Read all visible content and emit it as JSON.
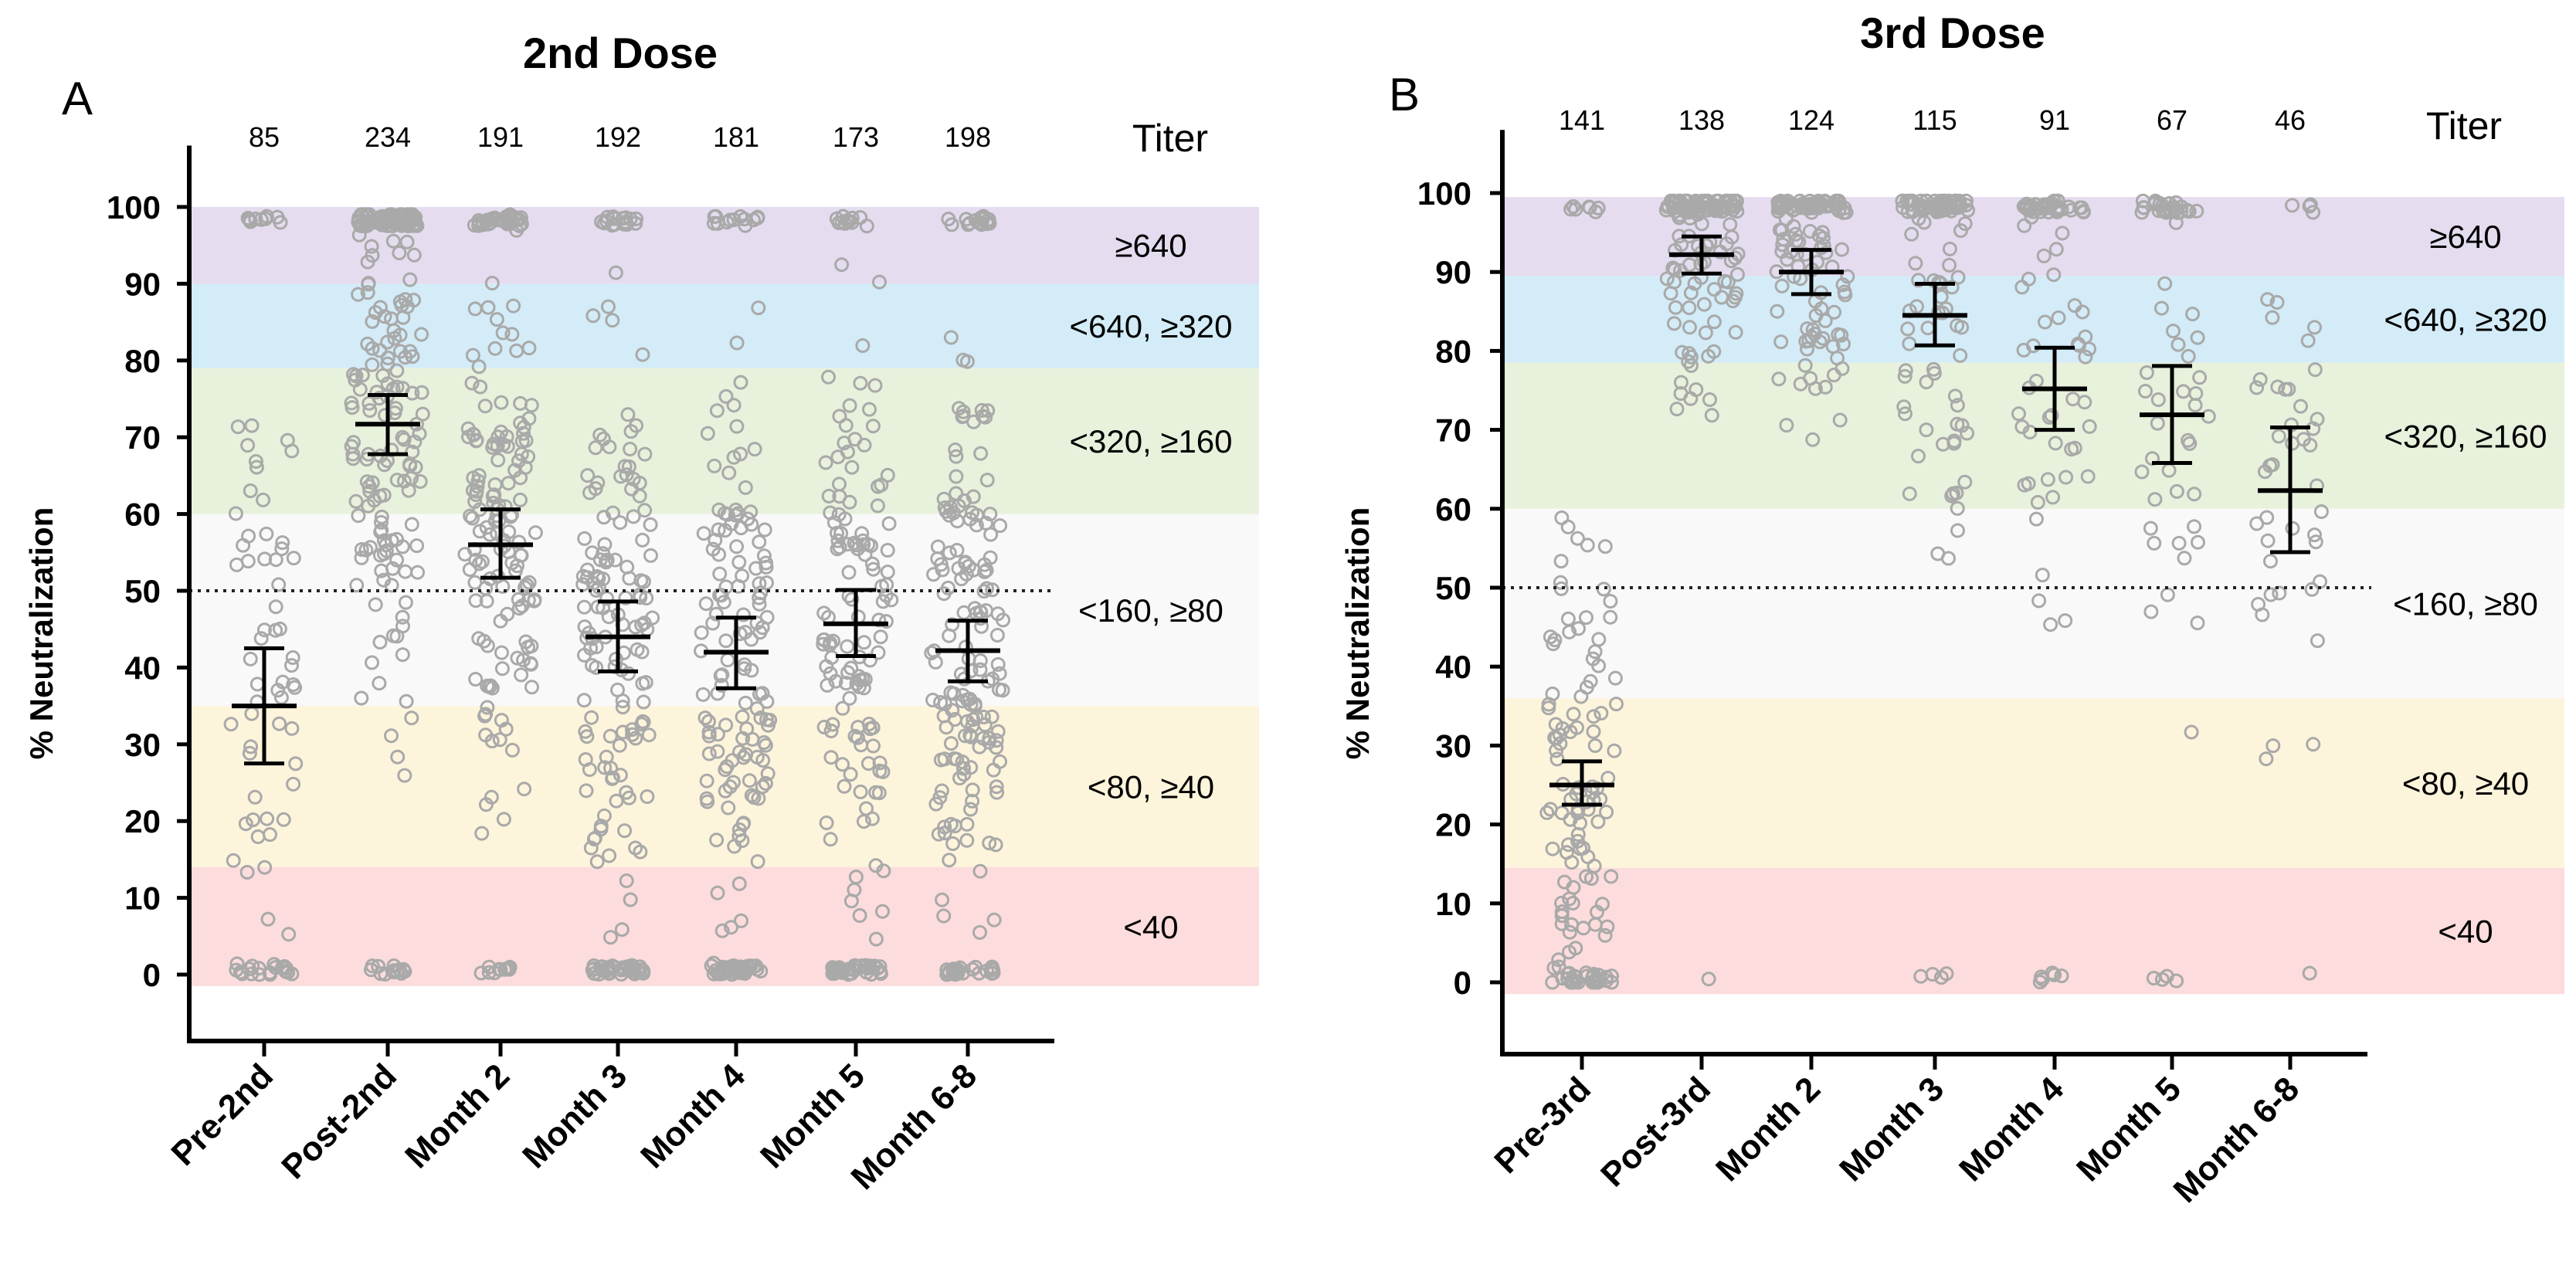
{
  "chart_data": [
    {
      "type": "scatter",
      "panel_label": "A",
      "title": "2nd Dose",
      "ylabel": "% Neutralization",
      "ylim": [
        -8,
        108
      ],
      "yticks": [
        0,
        10,
        20,
        30,
        40,
        50,
        60,
        70,
        80,
        90,
        100
      ],
      "reference_line": 50,
      "titer_header": "Titer",
      "titer_bands": [
        {
          "label": "≥640",
          "from": 90,
          "to": 100,
          "color": "#e5dcef"
        },
        {
          "label": "<640, ≥320",
          "from": 79,
          "to": 90,
          "color": "#d3ecf7"
        },
        {
          "label": "<320, ≥160",
          "from": 60,
          "to": 79,
          "color": "#e7f1dc"
        },
        {
          "label": "<160, ≥80",
          "from": 35,
          "to": 60,
          "color": "#f9f9f9"
        },
        {
          "label": "<80, ≥40",
          "from": 14,
          "to": 35,
          "color": "#fdf4dc"
        },
        {
          "label": "<40",
          "from": -1.5,
          "to": 14,
          "color": "#fcdcdc"
        }
      ],
      "categories": [
        "Pre-2nd",
        "Post-2nd",
        "Month 2",
        "Month 3",
        "Month 4",
        "Month 5",
        "Month 6-8"
      ],
      "n": [
        "85",
        "234",
        "191",
        "192",
        "181",
        "173",
        "198"
      ],
      "mean": [
        35,
        71.7,
        56,
        44,
        42,
        45.7,
        42.2
      ],
      "ci_low": [
        27.5,
        67.8,
        51.7,
        39.5,
        37.3,
        41.5,
        38.2
      ],
      "ci_high": [
        42.5,
        75.5,
        60.6,
        48.6,
        46.5,
        50.1,
        46.1
      ]
    },
    {
      "type": "scatter",
      "panel_label": "B",
      "title": "3rd Dose",
      "ylabel": "% Neutralization",
      "ylim": [
        -8,
        108
      ],
      "yticks": [
        0,
        10,
        20,
        30,
        40,
        50,
        60,
        70,
        80,
        90,
        100
      ],
      "reference_line": 50,
      "titer_header": "Titer",
      "titer_bands": [
        {
          "label": "≥640",
          "from": 89.5,
          "to": 99.5,
          "color": "#e5dcef"
        },
        {
          "label": "<640, ≥320",
          "from": 78.5,
          "to": 89.5,
          "color": "#d3ecf7"
        },
        {
          "label": "<320, ≥160",
          "from": 60,
          "to": 78.5,
          "color": "#e7f1dc"
        },
        {
          "label": "<160, ≥80",
          "from": 36,
          "to": 60,
          "color": "#f9f9f9"
        },
        {
          "label": "<80, ≥40",
          "from": 14.5,
          "to": 36,
          "color": "#fdf4dc"
        },
        {
          "label": "<40",
          "from": -1.5,
          "to": 14.5,
          "color": "#fcdcdc"
        }
      ],
      "categories": [
        "Pre-3rd",
        "Post-3rd",
        "Month 2",
        "Month 3",
        "Month 4",
        "Month 5",
        "Month 6-8"
      ],
      "n": [
        "141",
        "138",
        "124",
        "115",
        "91",
        "67",
        "46"
      ],
      "mean": [
        25,
        92.2,
        90,
        84.5,
        75.2,
        71.9,
        62.3
      ],
      "ci_low": [
        22.5,
        89.8,
        87.2,
        80.7,
        70,
        65.8,
        54.5
      ],
      "ci_high": [
        28,
        94.5,
        92.8,
        88.5,
        80.4,
        78.1,
        70.3
      ]
    }
  ]
}
